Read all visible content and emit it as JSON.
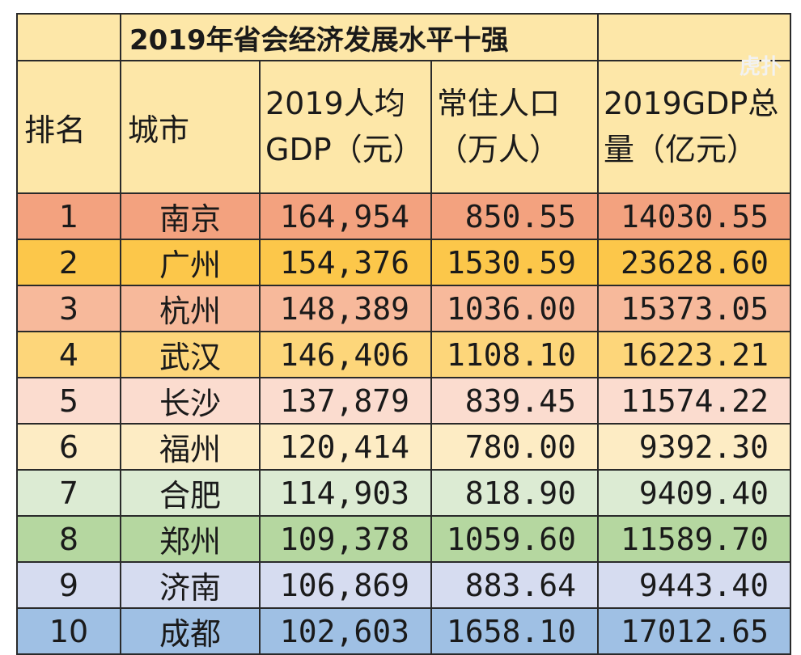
{
  "table": {
    "title": "2019年省会经济发展水平十强",
    "headers": {
      "rank": "排名",
      "city": "城市",
      "gdp_per_capita": "2019人均GDP（元）",
      "population": "常住人口（万人）",
      "gdp_total": "2019GDP总量（亿元）"
    },
    "rows": [
      {
        "rank": "1",
        "city": "南京",
        "gdp_per_capita": "164,954",
        "population": "850.55",
        "gdp_total": "14030.55",
        "color": "#f3a27f"
      },
      {
        "rank": "2",
        "city": "广州",
        "gdp_per_capita": "154,376",
        "population": "1530.59",
        "gdp_total": "23628.60",
        "color": "#fcc74a"
      },
      {
        "rank": "3",
        "city": "杭州",
        "gdp_per_capita": "148,389",
        "population": "1036.00",
        "gdp_total": "15373.05",
        "color": "#f7b99b"
      },
      {
        "rank": "4",
        "city": "武汉",
        "gdp_per_capita": "146,406",
        "population": "1108.10",
        "gdp_total": "16223.21",
        "color": "#fdd67a"
      },
      {
        "rank": "5",
        "city": "长沙",
        "gdp_per_capita": "137,879",
        "population": "839.45",
        "gdp_total": "11574.22",
        "color": "#fbdccf"
      },
      {
        "rank": "6",
        "city": "福州",
        "gdp_per_capita": "120,414",
        "population": "780.00",
        "gdp_total": "9392.30",
        "color": "#fdecc4"
      },
      {
        "rank": "7",
        "city": "合肥",
        "gdp_per_capita": "114,903",
        "population": "818.90",
        "gdp_total": "9409.40",
        "color": "#dcebd3"
      },
      {
        "rank": "8",
        "city": "郑州",
        "gdp_per_capita": "109,378",
        "population": "1059.60",
        "gdp_total": "11589.70",
        "color": "#b5d7a0"
      },
      {
        "rank": "9",
        "city": "济南",
        "gdp_per_capita": "106,869",
        "population": "883.64",
        "gdp_total": "9443.40",
        "color": "#d6dcf0"
      },
      {
        "rank": "10",
        "city": "成都",
        "gdp_per_capita": "102,603",
        "population": "1658.10",
        "gdp_total": "17012.65",
        "color": "#9fc0e4"
      }
    ]
  },
  "watermark": "虎扑",
  "colors": {
    "header_bg": "#fde7a8",
    "border": "#2a2a2a"
  }
}
